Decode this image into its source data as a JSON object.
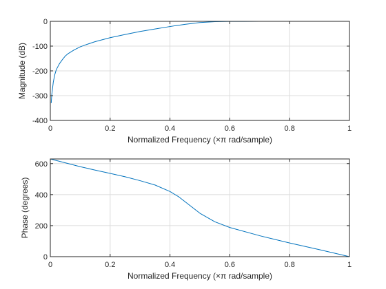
{
  "colors": {
    "line": "#0072BD",
    "axis": "#262626",
    "grid": "#dcdcdc"
  },
  "chart_data": [
    {
      "type": "line",
      "id": "magnitude",
      "xlabel": "Normalized Frequency  (×π rad/sample)",
      "ylabel": "Magnitude (dB)",
      "xlim": [
        0,
        1
      ],
      "ylim": [
        -400,
        0
      ],
      "xticks": [
        0,
        0.2,
        0.4,
        0.6,
        0.8,
        1
      ],
      "xtick_labels": [
        "0",
        "0.2",
        "0.4",
        "0.6",
        "0.8",
        "1"
      ],
      "yticks": [
        -400,
        -300,
        -200,
        -100,
        0
      ],
      "ytick_labels": [
        "-400",
        "-300",
        "-200",
        "-100",
        "0"
      ],
      "grid": true,
      "series": [
        {
          "x": [
            0.003,
            0.005,
            0.01,
            0.015,
            0.02,
            0.03,
            0.04,
            0.05,
            0.06,
            0.08,
            0.1,
            0.12,
            0.15,
            0.2,
            0.25,
            0.3,
            0.35,
            0.4,
            0.45,
            0.5,
            0.55,
            0.6,
            0.65,
            0.7,
            0.8,
            0.9,
            1.0
          ],
          "y": [
            -330,
            -295,
            -245,
            -215,
            -195,
            -172,
            -155,
            -140,
            -130,
            -115,
            -103,
            -94,
            -82,
            -66,
            -53,
            -41,
            -31,
            -21,
            -12,
            -5,
            -1.5,
            -0.5,
            -0.2,
            -0.1,
            0,
            0,
            0
          ]
        }
      ]
    },
    {
      "type": "line",
      "id": "phase",
      "xlabel": "Normalized Frequency  (×π rad/sample)",
      "ylabel": "Phase (degrees)",
      "xlim": [
        0,
        1
      ],
      "ylim": [
        0,
        630
      ],
      "xticks": [
        0,
        0.2,
        0.4,
        0.6,
        0.8,
        1
      ],
      "xtick_labels": [
        "0",
        "0.2",
        "0.4",
        "0.6",
        "0.8",
        "1"
      ],
      "yticks": [
        0,
        200,
        400,
        600
      ],
      "ytick_labels": [
        "0",
        "200",
        "400",
        "600"
      ],
      "grid": true,
      "series": [
        {
          "x": [
            0,
            0.05,
            0.1,
            0.15,
            0.2,
            0.25,
            0.3,
            0.35,
            0.4,
            0.43,
            0.46,
            0.5,
            0.55,
            0.6,
            0.7,
            0.8,
            0.9,
            1.0
          ],
          "y": [
            630,
            605,
            580,
            558,
            537,
            515,
            490,
            462,
            420,
            385,
            340,
            280,
            225,
            188,
            135,
            88,
            45,
            0
          ]
        }
      ]
    }
  ]
}
